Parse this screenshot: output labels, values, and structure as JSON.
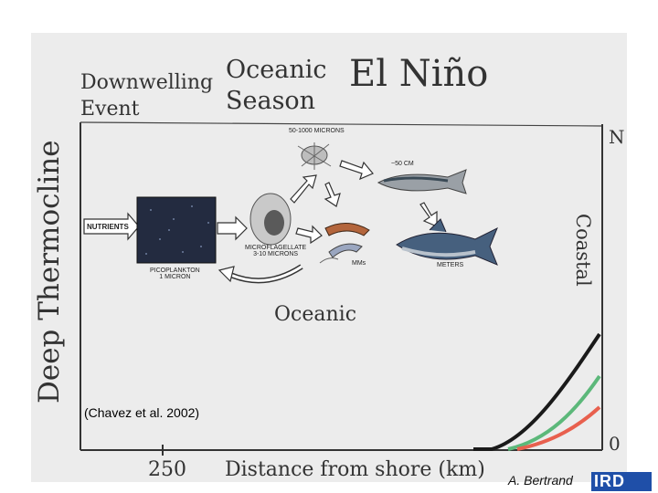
{
  "header": {
    "left_line1": "Downwelling",
    "left_line2": "Event",
    "mid_line1": "Oceanic",
    "mid_line2": "Season",
    "title": "El Niño"
  },
  "axes": {
    "y_label": "Deep Thermocline",
    "x_label": "Distance from shore (km)",
    "x_tick": "250",
    "right_top": "N",
    "right_bottom": "0",
    "right_label": "Coastal"
  },
  "diagram": {
    "nutrients": "NUTRIENTS",
    "picoplankton_line1": "PICOPLANKTON",
    "picoplankton_line2": "1 MICRON",
    "microflagellate_line1": "MICROFLAGELLATE",
    "microflagellate_line2": "3-10 MICRONS",
    "zooplankton": "50-1000 MICRONS",
    "fish_small": "~50 CM",
    "shrimp": "MMs",
    "tuna": "METERS",
    "region": "Oceanic"
  },
  "citation": "(Chavez et al. 2002)",
  "credit": "A. Bertrand",
  "logo_text": "IRD",
  "colors": {
    "curve_black": "#1a1a1a",
    "curve_green": "#5cb87a",
    "curve_red": "#e8604e",
    "logo_blue": "#1f4fa8"
  }
}
